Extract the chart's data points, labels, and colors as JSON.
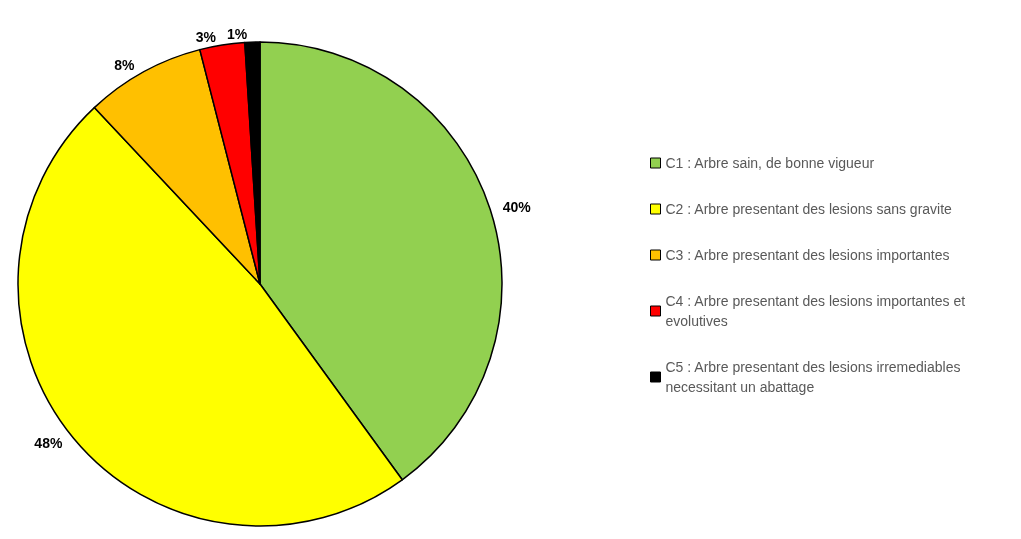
{
  "chart_data": {
    "type": "pie",
    "categories": [
      "C1 : Arbre sain, de bonne vigueur",
      "C2 : Arbre presentant des lesions sans gravite",
      "C3 : Arbre presentant des lesions importantes",
      "C4 : Arbre presentant des lesions importantes et evolutives",
      "C5 : Arbre presentant des lesions irremediables necessitant un abattage"
    ],
    "values": [
      40,
      48,
      8,
      3,
      1
    ],
    "colors": [
      "#92d050",
      "#ffff00",
      "#ffc000",
      "#ff0000",
      "#000000"
    ],
    "value_labels": [
      "40%",
      "48%",
      "8%",
      "3%",
      "1%"
    ],
    "legend": "right"
  }
}
